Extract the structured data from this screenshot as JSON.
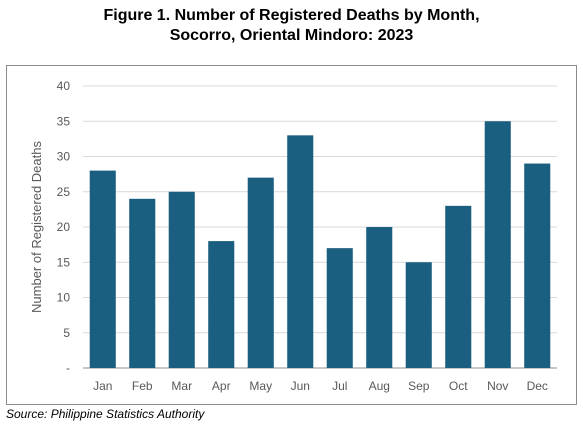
{
  "figure": {
    "title_line1": "Figure 1. Number of Registered Deaths by Month,",
    "title_line2": "Socorro, Oriental Mindoro: 2023",
    "source": "Source: Philippine Statistics Authority"
  },
  "colors": {
    "bar": "#1b5f80",
    "grid": "#d9d9d9",
    "axis": "#8c8c8c",
    "text": "#595959"
  },
  "chart_data": {
    "type": "bar",
    "title": "Figure 1. Number of Registered Deaths by Month, Socorro, Oriental Mindoro: 2023",
    "xlabel": "",
    "ylabel": "Number of Registered Deaths",
    "categories": [
      "Jan",
      "Feb",
      "Mar",
      "Apr",
      "May",
      "Jun",
      "Jul",
      "Aug",
      "Sep",
      "Oct",
      "Nov",
      "Dec"
    ],
    "values": [
      28,
      24,
      25,
      18,
      27,
      33,
      17,
      20,
      15,
      23,
      35,
      29
    ],
    "ylim": [
      0,
      40
    ],
    "yticks": [
      0,
      5,
      10,
      15,
      20,
      25,
      30,
      35,
      40
    ],
    "ytick_labels": [
      "-",
      "5",
      "10",
      "15",
      "20",
      "25",
      "30",
      "35",
      "40"
    ],
    "grid": true,
    "legend": "none"
  }
}
